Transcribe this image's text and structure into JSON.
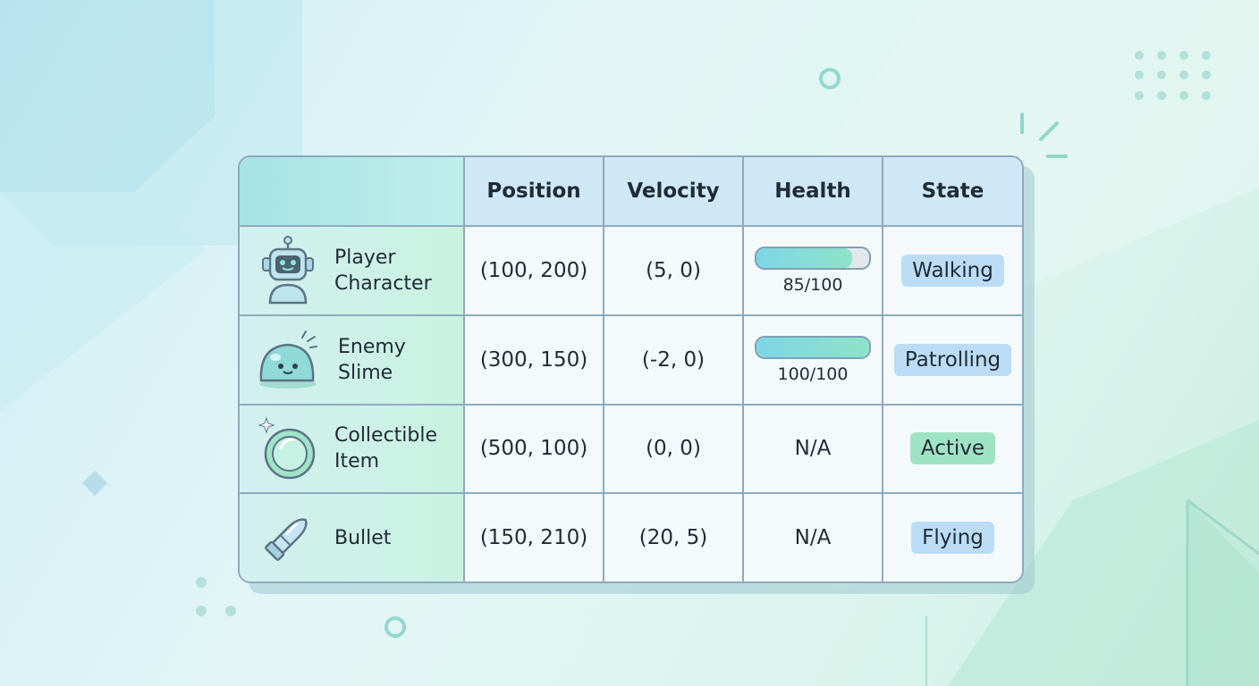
{
  "table": {
    "headers": [
      "",
      "Position",
      "Velocity",
      "Health",
      "State"
    ],
    "rows": [
      {
        "name": "Player Character",
        "icon": "robot-icon",
        "position": "(100, 200)",
        "velocity": "(5, 0)",
        "health_label": "85/100",
        "health_fraction": 0.85,
        "state": "Walking",
        "state_color": "#bcdcf5"
      },
      {
        "name": "Enemy Slime",
        "icon": "slime-icon",
        "position": "(300, 150)",
        "velocity": "(-2, 0)",
        "health_label": "100/100",
        "health_fraction": 1.0,
        "state": "Patrolling",
        "state_color": "#bcdcf5"
      },
      {
        "name": "Collectible Item",
        "icon": "coin-icon",
        "position": "(500, 100)",
        "velocity": "(0, 0)",
        "health_label": "N/A",
        "health_fraction": null,
        "state": "Active",
        "state_color": "#9fe3c5"
      },
      {
        "name": "Bullet",
        "icon": "bullet-icon",
        "position": "(150, 210)",
        "velocity": "(20, 5)",
        "health_label": "N/A",
        "health_fraction": null,
        "state": "Flying",
        "state_color": "#bcdcf5"
      }
    ]
  }
}
